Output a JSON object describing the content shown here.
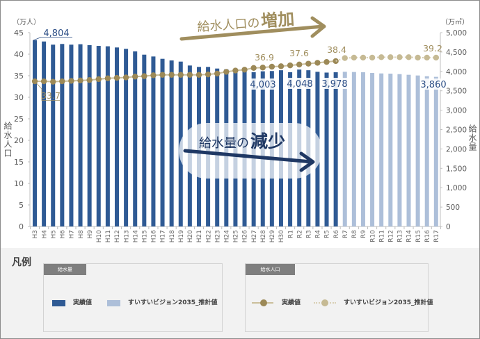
{
  "chart_data": {
    "type": "bar+line",
    "title": "",
    "legend_position": "bottom",
    "grid": false,
    "categories": [
      "H3",
      "H4",
      "H5",
      "H6",
      "H7",
      "H8",
      "H9",
      "H10",
      "H11",
      "H12",
      "H13",
      "H14",
      "H15",
      "H16",
      "H17",
      "H18",
      "H19",
      "H20",
      "H21",
      "H22",
      "H23",
      "H24",
      "H25",
      "H26",
      "H27",
      "H28",
      "H29",
      "H30",
      "R1",
      "R2",
      "R3",
      "R4",
      "R5",
      "R6",
      "R7",
      "R8",
      "R9",
      "R10",
      "R11",
      "R12",
      "R13",
      "R14",
      "R15",
      "R16",
      "R17"
    ],
    "y_left": {
      "label": "給水人口",
      "unit": "（万人）",
      "min": 0,
      "max": 45,
      "ticks": [
        0,
        5,
        10,
        15,
        20,
        25,
        30,
        35,
        40,
        45
      ],
      "tick_labels": [
        "0",
        "5",
        "10",
        "15",
        "20",
        "25",
        "30",
        "35",
        "40",
        "45"
      ]
    },
    "y_right": {
      "label": "給水量",
      "unit": "（万㎥）",
      "min": 0,
      "max": 5000,
      "ticks": [
        0,
        500,
        1000,
        1500,
        2000,
        2500,
        3000,
        3500,
        4000,
        4500,
        5000
      ],
      "tick_labels": [
        "0",
        "500",
        "1,000",
        "1,500",
        "2,000",
        "2,500",
        "3,000",
        "3,500",
        "4,000",
        "4,500",
        "5,000"
      ]
    },
    "series": [
      {
        "id": "water_actual",
        "name": "給水量 実績値",
        "type": "bar",
        "axis": "right",
        "values": [
          4804,
          4772,
          4690,
          4708,
          4690,
          4701,
          4677,
          4659,
          4648,
          4618,
          4582,
          4516,
          4432,
          4385,
          4325,
          4283,
          4253,
          4152,
          4116,
          4116,
          4074,
          4056,
          4010,
          4000,
          3980,
          4003,
          4010,
          4030,
          3980,
          4048,
          4030,
          3990,
          3970,
          3978,
          null,
          null,
          null,
          null,
          null,
          null,
          null,
          null,
          null,
          null,
          null
        ]
      },
      {
        "id": "water_est",
        "name": "給水量 すいすいビジョン2035_推計値",
        "type": "bar",
        "axis": "right",
        "values": [
          null,
          null,
          null,
          null,
          null,
          null,
          null,
          null,
          null,
          null,
          null,
          null,
          null,
          null,
          null,
          null,
          null,
          null,
          null,
          null,
          null,
          null,
          null,
          null,
          null,
          null,
          null,
          null,
          null,
          null,
          null,
          null,
          null,
          null,
          3990,
          3985,
          3978,
          3960,
          3948,
          3943,
          3930,
          3913,
          3895,
          3875,
          3860
        ]
      },
      {
        "id": "pop_actual",
        "name": "給水人口 実績値",
        "type": "line",
        "axis": "left",
        "style": "solid",
        "values": [
          33.7,
          33.7,
          33.6,
          33.7,
          33.8,
          33.9,
          34.0,
          34.2,
          34.4,
          34.5,
          34.6,
          34.8,
          34.9,
          35.1,
          35.2,
          35.2,
          35.2,
          35.2,
          35.2,
          35.3,
          35.5,
          35.9,
          36.2,
          36.4,
          36.8,
          36.9,
          37.1,
          37.2,
          37.4,
          37.6,
          37.8,
          38.0,
          38.2,
          38.4,
          null,
          null,
          null,
          null,
          null,
          null,
          null,
          null,
          null,
          null,
          null
        ]
      },
      {
        "id": "pop_est",
        "name": "給水人口 すいすいビジョン2035_推計値",
        "type": "line",
        "axis": "left",
        "style": "dotted",
        "connect_from": "pop_actual",
        "values": [
          null,
          null,
          null,
          null,
          null,
          null,
          null,
          null,
          null,
          null,
          null,
          null,
          null,
          null,
          null,
          null,
          null,
          null,
          null,
          null,
          null,
          null,
          null,
          null,
          null,
          null,
          null,
          null,
          null,
          null,
          null,
          null,
          null,
          null,
          39.1,
          39.2,
          39.2,
          39.2,
          39.3,
          39.3,
          39.3,
          39.3,
          39.2,
          39.2,
          39.2
        ]
      }
    ],
    "data_labels": [
      {
        "series": "water_actual",
        "category": "H3",
        "text": "4,804"
      },
      {
        "series": "water_actual",
        "category": "H28",
        "text": "4,003"
      },
      {
        "series": "water_actual",
        "category": "R2",
        "text": "4,048"
      },
      {
        "series": "water_actual",
        "category": "R6",
        "text": "3,978"
      },
      {
        "series": "water_est",
        "category": "R17",
        "text": "3,860"
      },
      {
        "series": "pop_actual",
        "category": "H3",
        "text": "33.7"
      },
      {
        "series": "pop_actual",
        "category": "H28",
        "text": "36.9"
      },
      {
        "series": "pop_actual",
        "category": "R2",
        "text": "37.6"
      },
      {
        "series": "pop_actual",
        "category": "R6",
        "text": "38.4"
      },
      {
        "series": "pop_est",
        "category": "R17",
        "text": "39.2"
      }
    ],
    "annotations": [
      {
        "id": "population-increase",
        "text": "給水人口の増加",
        "parts": [
          "給水人口の",
          "増加"
        ]
      },
      {
        "id": "water-decrease",
        "text": "給水量の減少",
        "parts": [
          "給水量の",
          "減少"
        ]
      }
    ]
  },
  "legend": {
    "title": "凡例",
    "groups": [
      {
        "header": "給水量",
        "items": [
          {
            "label": "実績値"
          },
          {
            "label": "すいすいビジョン2035_推計値"
          }
        ]
      },
      {
        "header": "給水人口",
        "items": [
          {
            "label": "実績値"
          },
          {
            "label": "すいすいビジョン2035_推計値"
          }
        ]
      }
    ]
  },
  "colors": {
    "water_actual": "#2f5a94",
    "water_est": "#adbfd9",
    "pop_actual_dot": "#9c8957",
    "pop_actual_line": "#cbbf9b",
    "pop_est_dot": "#c6ba94",
    "pop_est_line": "#d8cfb3",
    "label_blue": "#2b4d85",
    "label_gold": "#a08e5e",
    "annotation_gold": "#a08e5e",
    "annotation_navy": "#1f3864",
    "axis": "#bfbfbf",
    "tick_text": "#595959"
  }
}
